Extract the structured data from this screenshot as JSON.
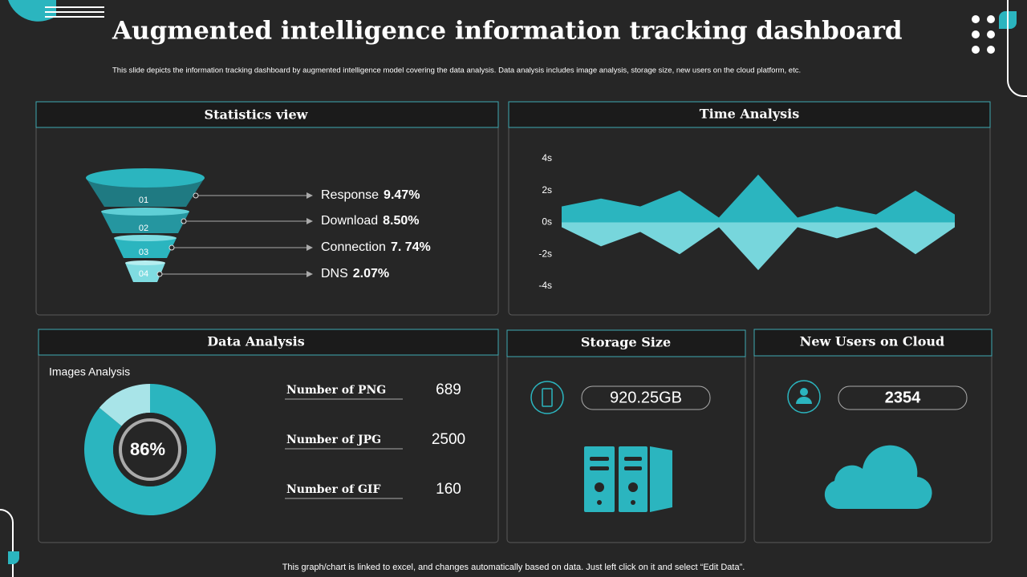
{
  "header": {
    "title": "Augmented intelligence information tracking dashboard",
    "subtitle": "This slide depicts the information tracking dashboard by augmented intelligence model covering the data analysis. Data analysis includes image analysis, storage size, new users on the cloud platform, etc."
  },
  "statistics": {
    "title": "Statistics view",
    "items": [
      {
        "step": "01",
        "label": "Response",
        "value": "9.47%"
      },
      {
        "step": "02",
        "label": "Download",
        "value": "8.50%"
      },
      {
        "step": "03",
        "label": "Connection",
        "value": "7. 74%"
      },
      {
        "step": "04",
        "label": "DNS",
        "value": "2.07%"
      }
    ]
  },
  "time_analysis": {
    "title": "Time Analysis"
  },
  "data_analysis": {
    "title": "Data Analysis",
    "rows": [
      {
        "label": "Number of PNG",
        "value": 689
      },
      {
        "label": "Number of JPG",
        "value": 2500
      },
      {
        "label": "Number of GIF",
        "value": 160
      }
    ]
  },
  "storage": {
    "title": "Storage Size",
    "value": "920.25GB"
  },
  "users": {
    "title": "New Users on Cloud",
    "value": 2354
  },
  "footer": "This graph/chart is linked to excel,  and changes automatically based on data. Just left click on it and select “Edit Data”.",
  "chart_data": [
    {
      "type": "area",
      "categories": [
        null,
        null,
        null,
        null,
        null,
        null,
        null,
        null,
        null,
        null,
        null
      ],
      "series": [
        {
          "color": "#2bb5bf",
          "values": [
            1,
            1.5,
            1,
            2,
            0.3,
            3,
            0.3,
            1,
            0.5,
            2,
            0.5
          ]
        },
        {
          "color": "#77d6dc",
          "values": [
            -0.3,
            -1.5,
            -0.6,
            -2,
            -0.3,
            -3,
            -0.3,
            -1,
            -0.3,
            -2,
            -0.3
          ]
        }
      ],
      "ylim": [
        -4,
        4
      ],
      "yticks": [
        {
          "value": 4,
          "label": "4s"
        },
        {
          "value": 2,
          "label": "2s"
        },
        {
          "value": 0,
          "label": "0s"
        },
        {
          "value": -2,
          "label": "-2s"
        },
        {
          "value": -4,
          "label": "-4s"
        }
      ]
    },
    {
      "type": "donut",
      "title": "Images Analysis",
      "values": [
        86,
        14
      ],
      "value_labels": [
        "86%",
        null
      ],
      "colors": [
        "#2bb5bf",
        "#a8e4e8"
      ]
    }
  ]
}
